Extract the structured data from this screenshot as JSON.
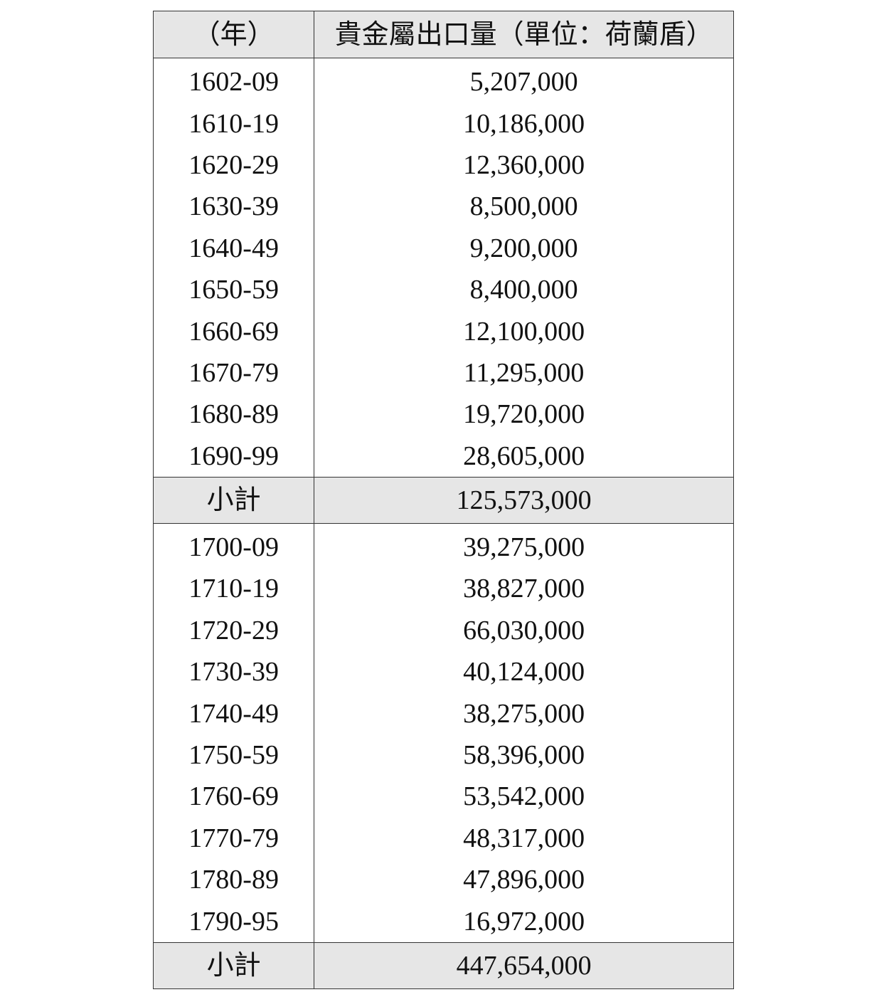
{
  "table": {
    "header": {
      "year": "（年）",
      "value": "貴金屬出口量（單位：荷蘭盾）"
    },
    "group1": [
      {
        "period": "1602-09",
        "value": "5,207,000"
      },
      {
        "period": "1610-19",
        "value": "10,186,000"
      },
      {
        "period": "1620-29",
        "value": "12,360,000"
      },
      {
        "period": "1630-39",
        "value": "8,500,000"
      },
      {
        "period": "1640-49",
        "value": "9,200,000"
      },
      {
        "period": "1650-59",
        "value": "8,400,000"
      },
      {
        "period": "1660-69",
        "value": "12,100,000"
      },
      {
        "period": "1670-79",
        "value": "11,295,000"
      },
      {
        "period": "1680-89",
        "value": "19,720,000"
      },
      {
        "period": "1690-99",
        "value": "28,605,000"
      }
    ],
    "subtotal1": {
      "label": "小計",
      "value": "125,573,000"
    },
    "group2": [
      {
        "period": "1700-09",
        "value": "39,275,000"
      },
      {
        "period": "1710-19",
        "value": "38,827,000"
      },
      {
        "period": "1720-29",
        "value": "66,030,000"
      },
      {
        "period": "1730-39",
        "value": "40,124,000"
      },
      {
        "period": "1740-49",
        "value": "38,275,000"
      },
      {
        "period": "1750-59",
        "value": "58,396,000"
      },
      {
        "period": "1760-69",
        "value": "53,542,000"
      },
      {
        "period": "1770-79",
        "value": "48,317,000"
      },
      {
        "period": "1780-89",
        "value": "47,896,000"
      },
      {
        "period": "1790-95",
        "value": "16,972,000"
      }
    ],
    "subtotal2": {
      "label": "小計",
      "value": "447,654,000"
    }
  }
}
